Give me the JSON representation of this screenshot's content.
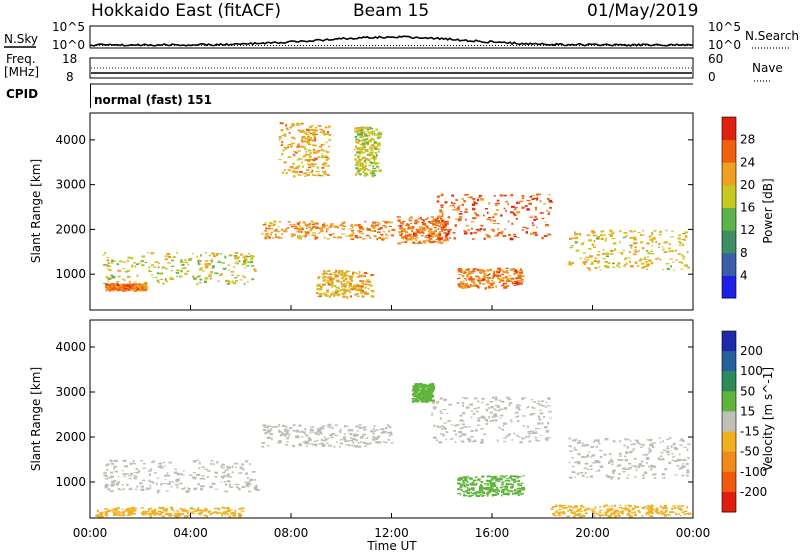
{
  "header": {
    "station": "Hokkaido East (fitACF)",
    "beam": "Beam 15",
    "date": "01/May/2019"
  },
  "nsky_panel": {
    "left_label": "N.Sky",
    "right_label": "N.Search",
    "left_ticks": [
      "10^5",
      "10^0"
    ],
    "right_ticks": [
      "10^5",
      "10^0"
    ]
  },
  "freq_panel": {
    "left_label": "Freq.",
    "left_unit": "[MHz]",
    "left_ticks": [
      "18",
      "8"
    ],
    "right_label": "Nave",
    "right_ticks": [
      "60",
      "0"
    ]
  },
  "cpid_panel": {
    "label": "CPID",
    "value": "normal (fast) 151"
  },
  "colors": {
    "power_scale": [
      "#1f1fe8",
      "#3a5fa8",
      "#3d8f63",
      "#5ab44a",
      "#c8c822",
      "#f0a020",
      "#f06010",
      "#e02010"
    ],
    "velocity_scale": [
      "#1f2aa8",
      "#26619c",
      "#2d8a5a",
      "#60b43c",
      "#c0c0b8",
      "#f0b020",
      "#f08a18",
      "#f05a10",
      "#e01e10"
    ],
    "ground_scatter": "#bdbdb4"
  },
  "chart_data": [
    {
      "type": "heatmap",
      "name": "power",
      "ylabel": "Slant Range [km]",
      "yticks": [
        1000,
        2000,
        3000,
        4000
      ],
      "ylim": [
        200,
        4600
      ],
      "xlim_hours": [
        0,
        24
      ],
      "colorbar": {
        "label": "Power [dB]",
        "ticks": [
          "4",
          "8",
          "12",
          "16",
          "20",
          "24",
          "28"
        ],
        "range": [
          0,
          32
        ]
      },
      "echo_regions": [
        {
          "t": [
            0.5,
            6.6
          ],
          "r": [
            800,
            1500
          ],
          "level": 18
        },
        {
          "t": [
            0.6,
            2.2
          ],
          "r": [
            650,
            800
          ],
          "level": 26
        },
        {
          "t": [
            6.8,
            12.0
          ],
          "r": [
            1800,
            2200
          ],
          "level": 24
        },
        {
          "t": [
            7.5,
            9.5
          ],
          "r": [
            3200,
            4400
          ],
          "level": 22
        },
        {
          "t": [
            10.5,
            11.5
          ],
          "r": [
            3200,
            4300
          ],
          "level": 18
        },
        {
          "t": [
            12.2,
            14.2
          ],
          "r": [
            1700,
            2300
          ],
          "level": 26
        },
        {
          "t": [
            13.8,
            18.3
          ],
          "r": [
            1800,
            2800
          ],
          "level": 28
        },
        {
          "t": [
            14.6,
            17.2
          ],
          "r": [
            700,
            1150
          ],
          "level": 26
        },
        {
          "t": [
            19.0,
            23.8
          ],
          "r": [
            1100,
            2000
          ],
          "level": 20
        },
        {
          "t": [
            9.0,
            11.2
          ],
          "r": [
            500,
            1100
          ],
          "level": 22
        }
      ]
    },
    {
      "type": "heatmap",
      "name": "velocity",
      "ylabel": "Slant Range [km]",
      "yticks": [
        1000,
        2000,
        3000,
        4000
      ],
      "ylim": [
        200,
        4600
      ],
      "xlim_hours": [
        0,
        24
      ],
      "xlabel": "Time UT",
      "xticks": [
        "00:00",
        "04:00",
        "08:00",
        "12:00",
        "16:00",
        "20:00",
        "00:00"
      ],
      "colorbar": {
        "label": "Velocity [m s^-1]",
        "ticks": [
          "200",
          "100",
          "50",
          "15",
          "-15",
          "-50",
          "-100",
          "-200"
        ],
        "range": [
          -250,
          250
        ]
      },
      "echo_regions": [
        {
          "t": [
            0.5,
            6.6
          ],
          "r": [
            800,
            1500
          ],
          "velocity": 0
        },
        {
          "t": [
            6.8,
            12.0
          ],
          "r": [
            1800,
            2300
          ],
          "velocity": 0
        },
        {
          "t": [
            13.5,
            18.3
          ],
          "r": [
            1900,
            2900
          ],
          "velocity": 0
        },
        {
          "t": [
            14.6,
            17.2
          ],
          "r": [
            700,
            1150
          ],
          "velocity": 60
        },
        {
          "t": [
            12.8,
            13.6
          ],
          "r": [
            2800,
            3200
          ],
          "velocity": 60
        },
        {
          "t": [
            19.0,
            23.8
          ],
          "r": [
            1100,
            2000
          ],
          "velocity": 0
        },
        {
          "t": [
            0.2,
            6.0
          ],
          "r": [
            250,
            450
          ],
          "velocity": -40
        },
        {
          "t": [
            18.3,
            23.8
          ],
          "r": [
            250,
            500
          ],
          "velocity": -60
        }
      ]
    }
  ]
}
